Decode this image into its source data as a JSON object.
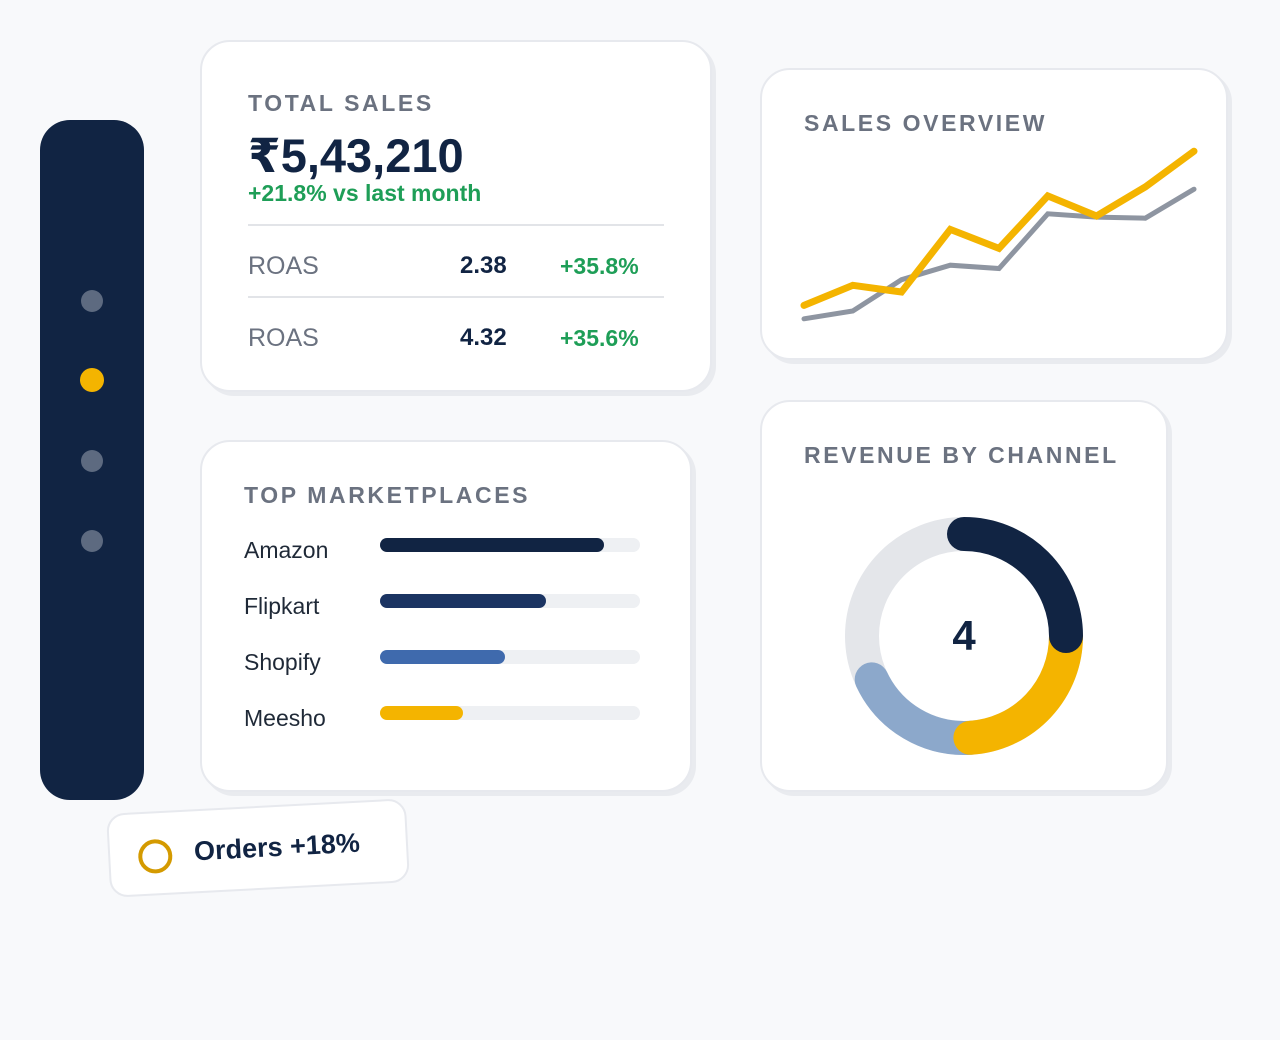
{
  "sidebar": {
    "dots": [
      "inactive",
      "active",
      "inactive",
      "inactive"
    ]
  },
  "total_sales": {
    "title": "TOTAL SALES",
    "amount": "₹5,43,210",
    "delta": "+21.8% vs last month",
    "metrics": [
      {
        "label": "ROAS",
        "value": "2.38",
        "delta": "+35.8%"
      },
      {
        "label": "ROAS",
        "value": "4.32",
        "delta": "+35.6%"
      }
    ]
  },
  "marketplaces": {
    "title": "TOP MARKETPLACES",
    "items": [
      {
        "name": "Amazon",
        "share": 0.86,
        "color": "#112443"
      },
      {
        "name": "Flipkart",
        "share": 0.64,
        "color": "#1b3462"
      },
      {
        "name": "Shopify",
        "share": 0.48,
        "color": "#3f6aad"
      },
      {
        "name": "Meesho",
        "share": 0.32,
        "color": "#f4b400"
      }
    ]
  },
  "sales_overview": {
    "title": "SALES OVERVIEW",
    "chart_data": {
      "type": "line",
      "x": [
        0,
        1,
        2,
        3,
        4,
        5,
        6,
        7,
        8
      ],
      "series": [
        {
          "color": "#f4b400",
          "values": [
            22,
            40,
            34,
            90,
            73,
            120,
            102,
            128,
            160
          ]
        },
        {
          "color": "#8e95a1",
          "values": [
            10,
            17,
            45,
            58,
            55,
            104,
            101,
            100,
            126
          ]
        }
      ],
      "ylim": [
        0,
        170
      ],
      "grid": false,
      "legend": "none"
    }
  },
  "revenue_channel": {
    "title": "REVENUE BY CHANNEL",
    "center_value": "4",
    "chart_data": {
      "type": "pie",
      "values": [
        25,
        24,
        19,
        32
      ],
      "colors": [
        "#112443",
        "#f4b400",
        "#8ca8cb",
        "#e4e6ea"
      ]
    }
  },
  "badge": {
    "text": "Orders +18%"
  }
}
